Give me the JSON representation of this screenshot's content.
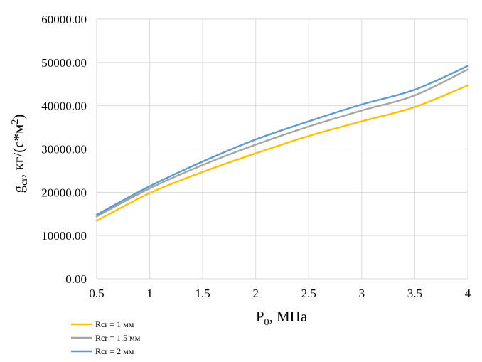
{
  "chart_data": {
    "type": "line",
    "title": "",
    "xlabel": {
      "base": "P",
      "sub": "0",
      "rest": ", МПа"
    },
    "ylabel": {
      "base": "g",
      "sub": "cr",
      "mid": ", кг/(с*м",
      "sup": "2",
      "end": ")"
    },
    "xlim": [
      0.5,
      4
    ],
    "ylim": [
      0,
      60000
    ],
    "x_ticks": [
      0.5,
      1,
      1.5,
      2,
      2.5,
      3,
      3.5,
      4
    ],
    "x_tick_labels": [
      "0.5",
      "1",
      "1.5",
      "2",
      "2.5",
      "3",
      "3.5",
      "4"
    ],
    "y_ticks": [
      0,
      10000,
      20000,
      30000,
      40000,
      50000,
      60000
    ],
    "y_tick_labels": [
      "0.00",
      "10000.00",
      "20000.00",
      "30000.00",
      "40000.00",
      "50000.00",
      "60000.00"
    ],
    "grid": true,
    "legend_position": "bottom-left",
    "x": [
      0.5,
      1,
      1.5,
      2,
      2.5,
      3,
      3.5,
      4
    ],
    "series": [
      {
        "name": "Rcr = 1 мм",
        "color": "#FFC000",
        "values": [
          13400,
          19800,
          24700,
          29000,
          33000,
          36400,
          39700,
          44700
        ]
      },
      {
        "name": "Rcr = 1.5 мм",
        "color": "#A5A5A5",
        "values": [
          14400,
          20900,
          26300,
          31000,
          35200,
          38900,
          42400,
          48400
        ]
      },
      {
        "name": "Rcr = 2 мм",
        "color": "#5B9BD5",
        "values": [
          14800,
          21400,
          27100,
          32200,
          36400,
          40300,
          43700,
          49200
        ]
      }
    ]
  }
}
